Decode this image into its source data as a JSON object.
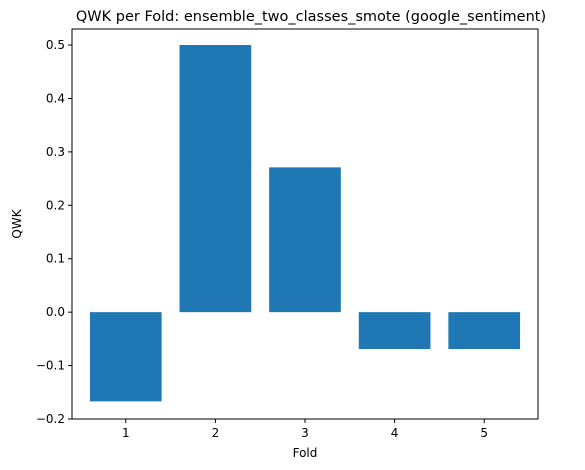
{
  "chart_data": {
    "type": "bar",
    "title": "QWK per Fold: ensemble_two_classes_smote (google_sentiment)",
    "xlabel": "Fold",
    "ylabel": "QWK",
    "categories": [
      "1",
      "2",
      "3",
      "4",
      "5"
    ],
    "values": [
      -0.167,
      0.5,
      0.271,
      -0.069,
      -0.069
    ],
    "ylim": [
      -0.2,
      0.53
    ],
    "yticks": [
      -0.2,
      -0.1,
      0.0,
      0.1,
      0.2,
      0.3,
      0.4,
      0.5
    ],
    "ytick_labels": [
      "−0.2",
      "−0.1",
      "0.0",
      "0.1",
      "0.2",
      "0.3",
      "0.4",
      "0.5"
    ],
    "bar_color": "#1f77b4",
    "grid": false,
    "legend": null
  }
}
